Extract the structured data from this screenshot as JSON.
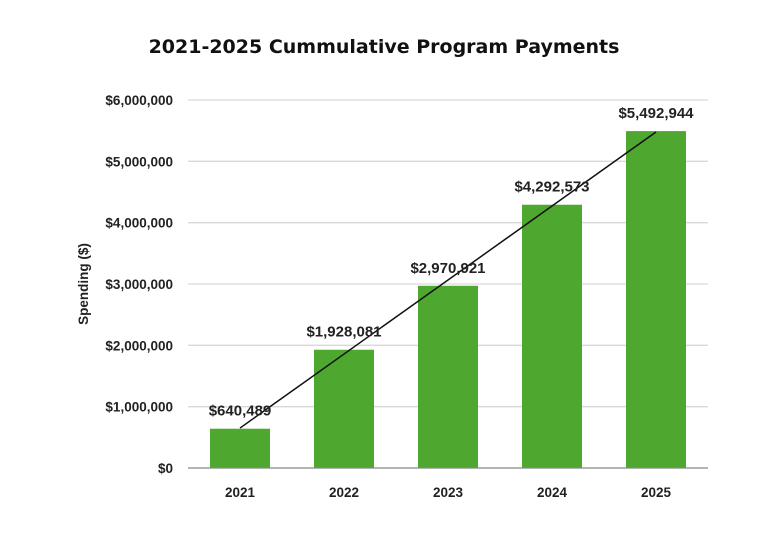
{
  "chart_data": {
    "type": "bar",
    "title": "2021-2025 Cummulative Program Payments",
    "xlabel": "",
    "ylabel": "Spending ($)",
    "categories": [
      "2021",
      "2022",
      "2023",
      "2024",
      "2025"
    ],
    "values": [
      640489,
      1928081,
      2970921,
      4292573,
      5492944
    ],
    "data_labels": [
      "$640,489",
      "$1,928,081",
      "$2,970,921",
      "$4,292,573",
      "$5,492,944"
    ],
    "ylim": [
      0,
      6000000
    ],
    "yticks": [
      0,
      1000000,
      2000000,
      3000000,
      4000000,
      5000000,
      6000000
    ],
    "ytick_labels": [
      "$0",
      "$1,000,000",
      "$2,000,000",
      "$3,000,000",
      "$4,000,000",
      "$5,000,000",
      "$6,000,000"
    ],
    "grid": true,
    "trendline": "linear",
    "colors": {
      "bar": "#4ea72e",
      "trend": "#111111",
      "grid": "#d9d9d9",
      "axis": "#888888"
    }
  }
}
